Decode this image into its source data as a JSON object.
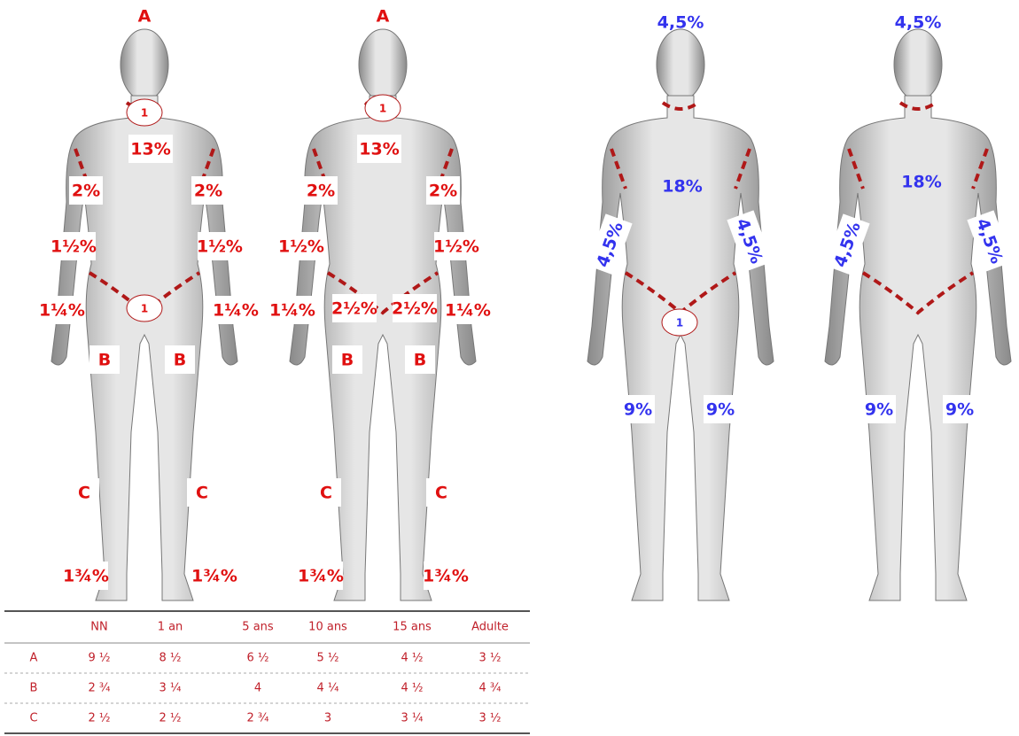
{
  "figures": [
    {
      "labels": [
        "A",
        "1",
        "13%",
        "2%",
        "2%",
        "1½%",
        "1½%",
        "1¼%",
        "1¼%",
        "1",
        "B",
        "B",
        "C",
        "C",
        "1¾%",
        "1¾%"
      ]
    },
    {
      "labels": [
        "A",
        "1",
        "13%",
        "2%",
        "2%",
        "1½%",
        "1½%",
        "1¼%",
        "2½%",
        "2½%",
        "1¼%",
        "B",
        "B",
        "C",
        "C",
        "1¾%",
        "1¾%"
      ]
    },
    {
      "labels": [
        "4,5%",
        "18%",
        "4,5%",
        "4,5%",
        "1",
        "9%",
        "9%"
      ]
    },
    {
      "labels": [
        "4,5%",
        "18%",
        "4,5%",
        "4,5%",
        "9%",
        "9%"
      ]
    }
  ],
  "table": {
    "header": [
      "NN",
      "1 an",
      "5 ans",
      "10 ans",
      "15 ans",
      "Adulte"
    ],
    "rows": [
      [
        "A",
        "9 ½",
        "8 ½",
        "6 ½",
        "5 ½",
        "4 ½",
        "3 ½"
      ],
      [
        "B",
        "2 ¾",
        "3 ¼",
        "4",
        "4 ¼",
        "4 ½",
        "4 ¾"
      ],
      [
        "C",
        "2 ½",
        "2 ½",
        "2 ¾",
        "3",
        "3 ¼",
        "3 ½"
      ]
    ]
  }
}
